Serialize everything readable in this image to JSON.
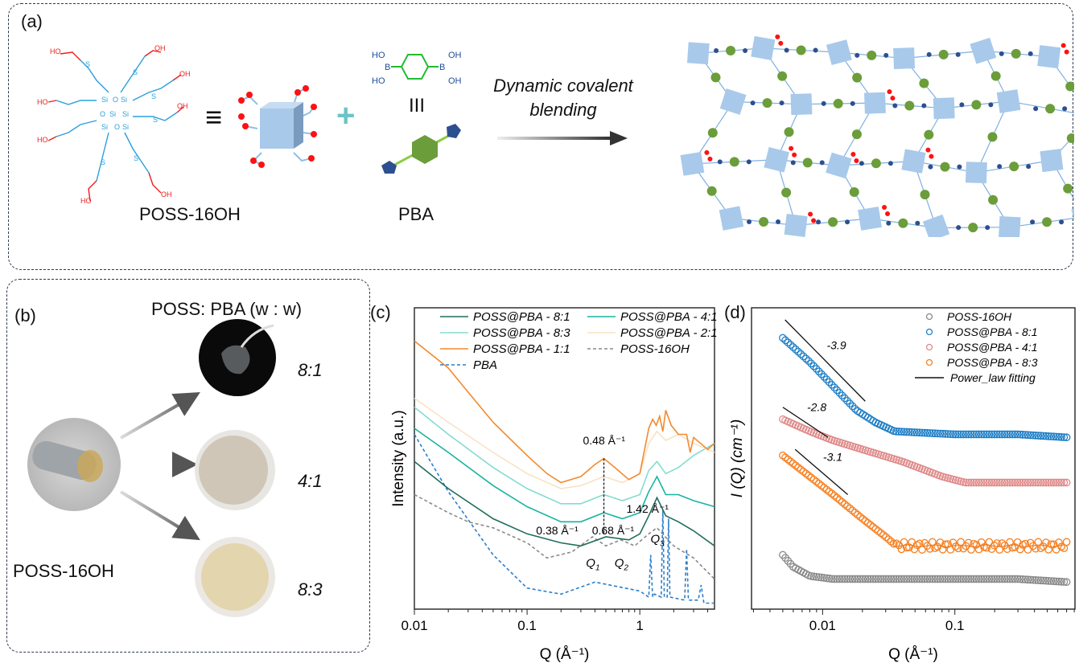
{
  "panel_a": {
    "label": "(a)",
    "poss_name": "POSS-16OH",
    "pba_name": "PBA",
    "equiv_symbol": "≡",
    "plus_symbol": "+",
    "equiv_vertical": "III",
    "arrow_text_line1": "Dynamic covalent",
    "arrow_text_line2": "blending",
    "chem": {
      "ho": "HO",
      "oh": "OH",
      "s": "S",
      "si": "Si",
      "o": "O",
      "b": "B"
    }
  },
  "panel_b": {
    "label": "(b)",
    "title": "POSS: PBA (w : w)",
    "source_label": "POSS-16OH",
    "ratios": [
      "8:1",
      "4:1",
      "8:3"
    ]
  },
  "chart_data": [
    {
      "panel": "(c)",
      "type": "line",
      "xlabel": "Q (Å⁻¹)",
      "ylabel": "Intensity (a.u.)",
      "xscale": "log",
      "xlim": [
        0.01,
        4.6
      ],
      "ylim": [
        0,
        100
      ],
      "xticks": [
        "0.01",
        "0.1",
        "1"
      ],
      "xtick_values": [
        0.01,
        0.1,
        1
      ],
      "legend": "top",
      "series": [
        {
          "name": "POSS@PBA - 8:1",
          "color": "#1e6e5c",
          "dash": false,
          "x": [
            0.01,
            0.02,
            0.05,
            0.1,
            0.2,
            0.3,
            0.5,
            0.8,
            1.0,
            1.2,
            1.42,
            1.7,
            2.2,
            3,
            4.6
          ],
          "y": [
            49,
            40,
            30,
            25,
            22,
            21,
            24,
            23,
            25,
            31,
            37,
            31,
            29,
            26,
            21
          ]
        },
        {
          "name": "POSS@PBA - 4:1",
          "color": "#19b3a0",
          "dash": false,
          "x": [
            0.01,
            0.02,
            0.05,
            0.1,
            0.2,
            0.3,
            0.48,
            0.7,
            1.0,
            1.2,
            1.42,
            1.7,
            2.2,
            3,
            4.6
          ],
          "y": [
            60,
            52,
            41,
            34,
            29,
            29,
            32,
            30,
            32,
            39,
            44,
            38,
            38,
            36,
            34
          ]
        },
        {
          "name": "POSS@PBA - 8:3",
          "color": "#84dccf",
          "dash": false,
          "x": [
            0.01,
            0.02,
            0.05,
            0.1,
            0.2,
            0.3,
            0.48,
            0.7,
            1.0,
            1.2,
            1.42,
            1.7,
            2.2,
            3,
            4.6
          ],
          "y": [
            67,
            58,
            47,
            40,
            35,
            35,
            38,
            36,
            38,
            46,
            49,
            45,
            47,
            51,
            55
          ]
        },
        {
          "name": "POSS@PBA - 2:1",
          "color": "#f7e3c4",
          "dash": false,
          "x": [
            0.01,
            0.02,
            0.05,
            0.1,
            0.2,
            0.3,
            0.48,
            0.7,
            1.0,
            1.2,
            1.42,
            1.7,
            2.2,
            3,
            4.6
          ],
          "y": [
            70,
            62,
            52,
            45,
            40,
            41,
            44,
            42,
            45,
            55,
            59,
            56,
            58,
            55,
            52
          ]
        },
        {
          "name": "POSS@PBA - 1:1",
          "color": "#f28a2e",
          "dash": false,
          "x": [
            0.01,
            0.02,
            0.03,
            0.05,
            0.1,
            0.15,
            0.2,
            0.3,
            0.4,
            0.48,
            0.6,
            0.8,
            1.0,
            1.2,
            1.3,
            1.4,
            1.5,
            1.6,
            1.7,
            1.9,
            2.2,
            2.6,
            2.8,
            3,
            4,
            4.6
          ],
          "y": [
            89,
            80,
            72,
            62,
            51,
            45,
            42,
            44,
            48,
            50,
            47,
            43,
            45,
            60,
            63,
            61,
            64,
            59,
            66,
            61,
            58,
            58,
            52,
            57,
            53,
            55
          ]
        },
        {
          "name": "POSS-16OH",
          "color": "#8a8a8a",
          "dash": true,
          "x": [
            0.01,
            0.02,
            0.03,
            0.05,
            0.1,
            0.15,
            0.25,
            0.38,
            0.5,
            0.68,
            0.9,
            1.2,
            1.42,
            2,
            3,
            4.6
          ],
          "y": [
            38,
            32,
            29,
            27,
            22,
            17,
            19,
            24,
            21,
            23,
            21,
            25,
            27,
            21,
            17,
            10
          ]
        },
        {
          "name": "PBA",
          "color": "#2a7fc9",
          "dash": true,
          "x": [
            0.01,
            0.02,
            0.05,
            0.1,
            0.2,
            0.4,
            1.0,
            1.2,
            1.25,
            1.3,
            1.35,
            1.55,
            1.6,
            1.65,
            1.75,
            1.8,
            1.85,
            2.5,
            2.6,
            2.7,
            3.3,
            3.5,
            3.7,
            4.6
          ],
          "y": [
            58,
            39,
            18,
            7,
            5,
            9,
            6,
            4,
            18,
            4,
            5,
            4,
            33,
            4,
            4,
            30,
            4,
            3,
            20,
            3,
            3,
            8,
            2,
            2
          ]
        }
      ],
      "annotations": [
        {
          "text": "0.48 Å⁻¹",
          "x": 0.48
        },
        {
          "text": "0.38 Å⁻¹",
          "x": 0.38,
          "tag": "Q1"
        },
        {
          "text": "0.68 Å⁻¹",
          "x": 0.68,
          "tag": "Q2"
        },
        {
          "text": "1.42 Å⁻¹",
          "x": 1.42,
          "tag": "Q3"
        }
      ]
    },
    {
      "panel": "(d)",
      "type": "scatter",
      "xlabel": "Q (Å⁻¹)",
      "ylabel": "I (Q) (cm⁻¹)",
      "xscale": "log",
      "xlim": [
        0.0029,
        0.81
      ],
      "ylim": [
        0,
        100
      ],
      "xticks": [
        "0.01",
        "0.1"
      ],
      "xtick_values": [
        0.01,
        0.1
      ],
      "legend": "top-right",
      "series": [
        {
          "name": "POSS-16OH",
          "color": "#8a8a8a",
          "x": [
            0.005,
            0.006,
            0.008,
            0.012,
            0.05,
            0.3,
            0.7
          ],
          "y": [
            18,
            14,
            11,
            10,
            10,
            10,
            9
          ]
        },
        {
          "name": "POSS@PBA - 8:1",
          "color": "#1f7fc6",
          "x": [
            0.005,
            0.008,
            0.012,
            0.018,
            0.025,
            0.035,
            0.1,
            0.3,
            0.7
          ],
          "y": [
            90,
            82,
            74,
            66,
            62,
            59,
            58,
            58,
            57
          ]
        },
        {
          "name": "POSS@PBA - 4:1",
          "color": "#e08a8a",
          "x": [
            0.005,
            0.008,
            0.012,
            0.02,
            0.04,
            0.08,
            0.12,
            0.3,
            0.7
          ],
          "y": [
            63,
            59,
            56,
            53,
            49,
            44,
            42,
            42,
            42
          ]
        },
        {
          "name": "POSS@PBA - 8:3",
          "color": "#f57f20",
          "x": [
            0.005,
            0.008,
            0.012,
            0.02,
            0.03,
            0.036,
            0.1,
            0.3,
            0.7
          ],
          "y": [
            51,
            44,
            38,
            30,
            24,
            21,
            21,
            21,
            21
          ]
        }
      ],
      "fit_legend": "Power_law fitting",
      "fits": [
        {
          "slope_label": "-3.9",
          "x": [
            0.0052,
            0.021
          ],
          "y": [
            96,
            69
          ]
        },
        {
          "slope_label": "-2.8",
          "x": [
            0.005,
            0.011
          ],
          "y": [
            67,
            57
          ]
        },
        {
          "slope_label": "-3.1",
          "x": [
            0.0062,
            0.0155
          ],
          "y": [
            53,
            38
          ]
        }
      ]
    }
  ]
}
